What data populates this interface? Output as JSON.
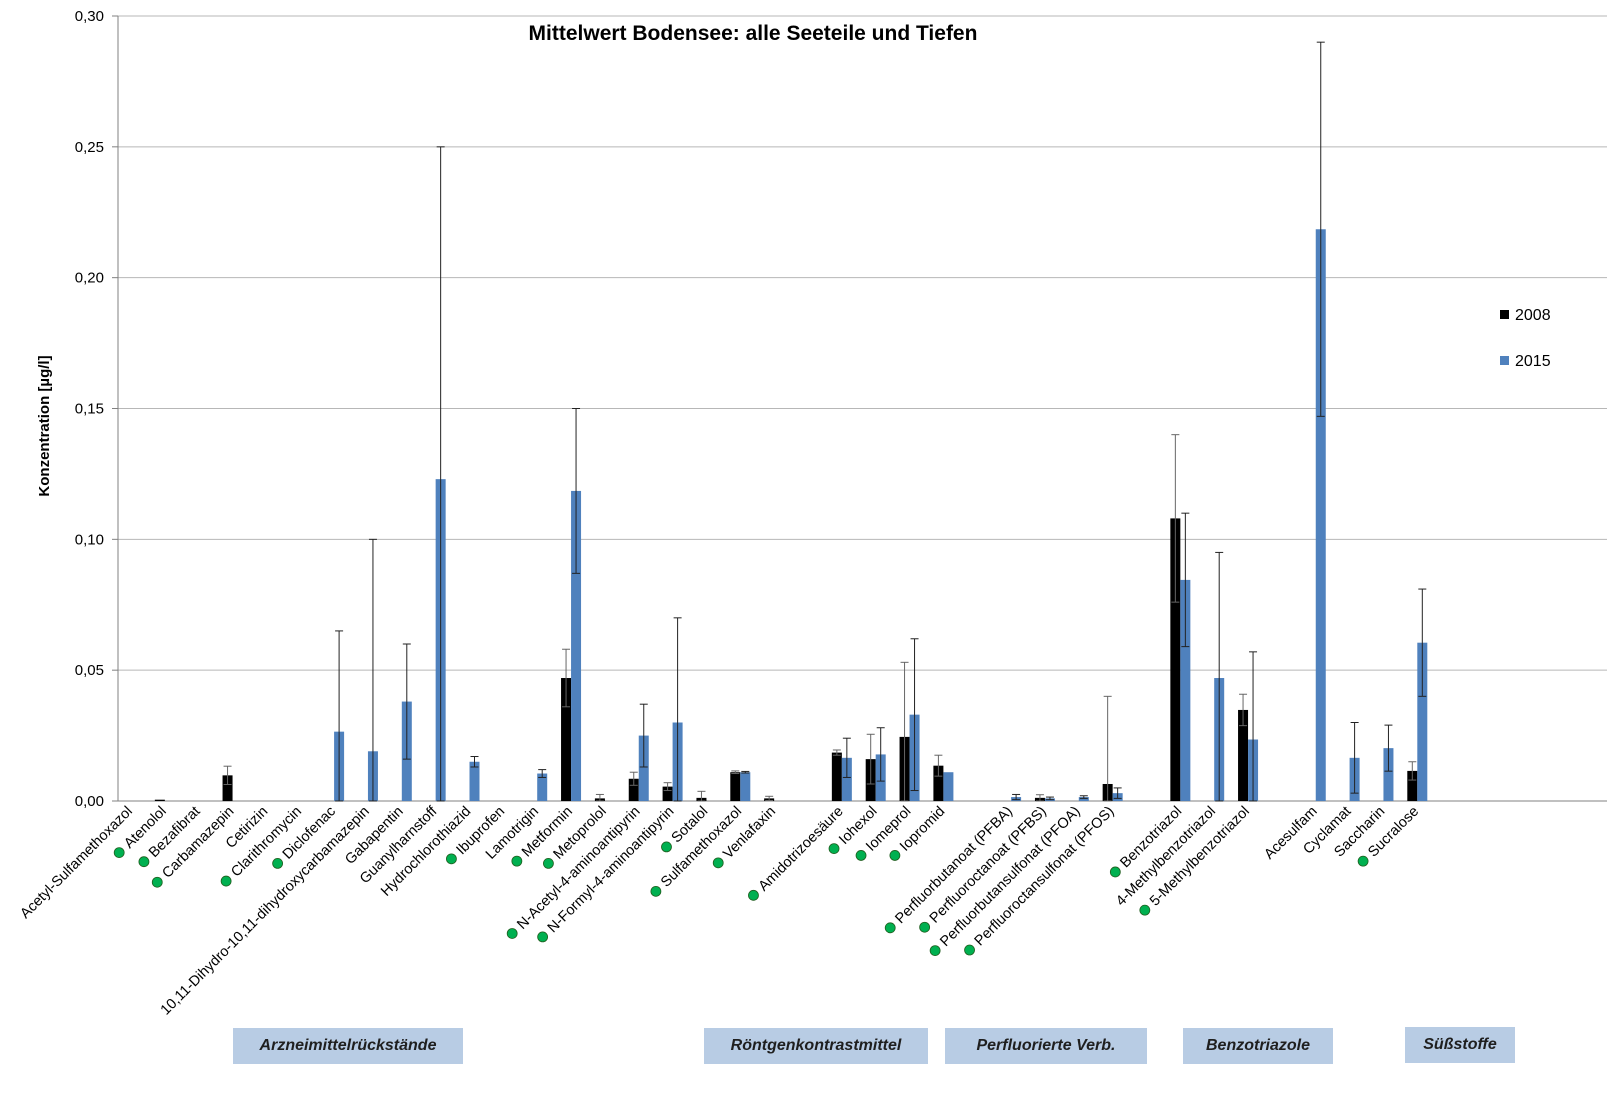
{
  "chart_data": {
    "type": "bar",
    "title": "Mittelwert Bodensee: alle Seeteile und Tiefen",
    "xlabel": "",
    "ylabel": "Konzentration [µg/l]",
    "ylim": [
      0,
      0.3
    ],
    "yticks": [
      "0,00",
      "0,05",
      "0,10",
      "0,15",
      "0,20",
      "0,25",
      "0,30"
    ],
    "grid": true,
    "legend_position": "right",
    "categories": [
      "Acetyl-Sulfamethoxazol",
      "Atenolol",
      "Bezafibrat",
      "Carbamazepin",
      "Cetirizin",
      "Clarithromycin",
      "Diclofenac",
      "10,11-Dihydro-10,11-dihydroxycarbamazepin",
      "Gabapentin",
      "Guanylharnstoff",
      "Hydrochlorothiazid",
      "Ibuprofen",
      "Lamotrigin",
      "Metformin",
      "Metoprolol",
      "N-Acetyl-4-aminoantipyrin",
      "N-Formyl-4-aminoantipyrin",
      "Sotalol",
      "Sulfamethoxazol",
      "Venlafaxin",
      "",
      "Amidotrizoesäure",
      "Iohexol",
      "Iomeprol",
      "Iopromid",
      "",
      "Perfluorbutanoat (PFBA)",
      "Perfluoroctanoat (PFBS)",
      "Perfluorbutansulfonat (PFOA)",
      "Perfluoroctansulfonat (PFOS)",
      "",
      "Benzotriazol",
      "4-Methylbenzotriazol",
      "5-Methylbenzotriazol",
      "",
      "Acesulfam",
      "Cyclamat",
      "Saccharin",
      "Sucralose"
    ],
    "marked": [
      false,
      true,
      true,
      true,
      false,
      true,
      true,
      false,
      false,
      false,
      false,
      true,
      false,
      true,
      true,
      true,
      true,
      true,
      true,
      true,
      false,
      true,
      true,
      true,
      true,
      false,
      true,
      true,
      true,
      true,
      false,
      true,
      false,
      true,
      false,
      false,
      false,
      false,
      true
    ],
    "series": [
      {
        "name": "2008",
        "color": "#000000",
        "values": [
          0,
          0.0005,
          0,
          0.0098,
          0,
          0,
          0,
          0,
          0,
          0,
          0,
          0,
          0,
          0.047,
          0.001,
          0.0085,
          0.0055,
          0.0012,
          0.011,
          0.001,
          0,
          0.0185,
          0.016,
          0.0245,
          0.0135,
          0,
          0,
          0.0012,
          0,
          0.0065,
          0,
          0.108,
          0,
          0.0348,
          0,
          0,
          0,
          0,
          0.0115
        ],
        "errors": [
          0,
          0,
          0,
          0.0035,
          0,
          0,
          0,
          0,
          0,
          0,
          0,
          0,
          0,
          0.011,
          0.0015,
          0.0025,
          0.0015,
          0.0025,
          0.0005,
          0.0008,
          0,
          0.001,
          0.0095,
          0.0285,
          0.004,
          0,
          0,
          0.0012,
          0,
          0.0335,
          0,
          0.032,
          0,
          0.006,
          0,
          0,
          0,
          0,
          0.0035
        ]
      },
      {
        "name": "2015",
        "color": "#4f81bd",
        "values": [
          0,
          0,
          0,
          0,
          0,
          0,
          0.0265,
          0.019,
          0.038,
          0.123,
          0.015,
          0,
          0.0105,
          0.1185,
          0,
          0.025,
          0.03,
          0,
          0.011,
          0,
          0,
          0.0165,
          0.0178,
          0.033,
          0.011,
          0,
          0.0015,
          0.001,
          0.0015,
          0.003,
          0,
          0.0845,
          0.047,
          0.0235,
          0,
          0.2185,
          0.0165,
          0.0202,
          0.0605
        ],
        "errors": [
          0,
          0,
          0,
          0,
          0,
          0,
          0.0385,
          0.081,
          0.022,
          0.127,
          0.002,
          0,
          0.0015,
          0.0315,
          0,
          0.012,
          0.04,
          0,
          0.0003,
          0,
          0,
          0.0075,
          0.0102,
          0.029,
          0,
          0,
          0.001,
          0.0005,
          0.0005,
          0.002,
          0,
          0.0255,
          0.048,
          0.0335,
          0,
          0.0715,
          0.0135,
          0.0088,
          0.0205
        ]
      }
    ],
    "group_labels": [
      "Arzneimittelrückstände",
      "Röntgenkontrastmittel",
      "Perfluorierte Verb.",
      "Benzotriazole",
      "Süßstoffe"
    ]
  }
}
